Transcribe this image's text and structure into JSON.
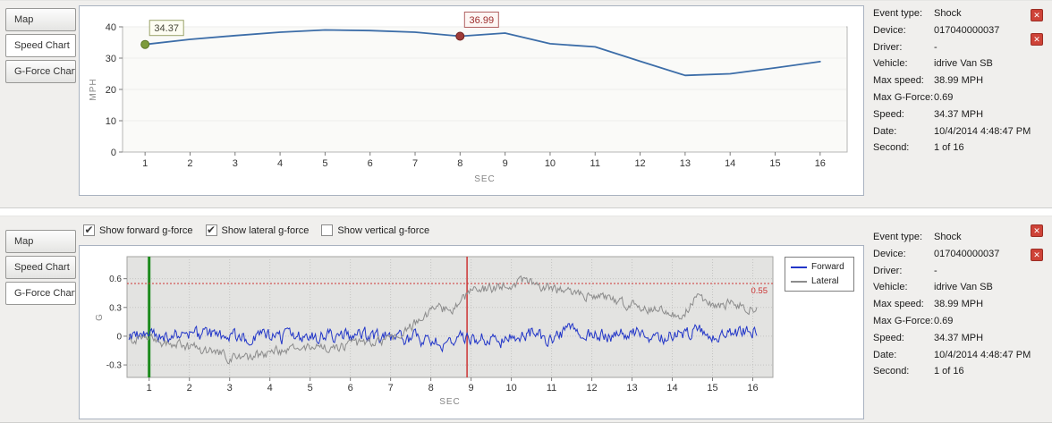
{
  "icons": {
    "close": "✕",
    "check": "✔"
  },
  "tabs": {
    "map": "Map",
    "speed": "Speed Chart",
    "gforce": "G-Force Chart"
  },
  "event_info": {
    "rows": [
      {
        "label": "Event type:",
        "value": "Shock"
      },
      {
        "label": "Device:",
        "value": "017040000037"
      },
      {
        "label": "Driver:",
        "value": "-"
      },
      {
        "label": "Vehicle:",
        "value": "idrive Van SB"
      },
      {
        "label": "Max speed:",
        "value": "38.99 MPH"
      },
      {
        "label": "Max G-Force:",
        "value": "0.69"
      },
      {
        "label": "Speed:",
        "value": "34.37 MPH"
      },
      {
        "label": "Date:",
        "value": "10/4/2014 4:48:47 PM"
      },
      {
        "label": "Second:",
        "value": "1 of 16"
      }
    ]
  },
  "gforce_controls": {
    "checkboxes": [
      {
        "name": "show-forward-gforce-checkbox",
        "label": "Show forward g-force",
        "checked": true
      },
      {
        "name": "show-lateral-gforce-checkbox",
        "label": "Show lateral g-force",
        "checked": true
      },
      {
        "name": "show-vertical-gforce-checkbox",
        "label": "Show vertical g-force",
        "checked": false
      }
    ]
  },
  "legend": {
    "position": "right",
    "entries": [
      {
        "name": "Forward",
        "color": "#2236c8"
      },
      {
        "name": "Lateral",
        "color": "#8c8c8c"
      }
    ]
  },
  "chart_data": [
    {
      "type": "line",
      "title": "",
      "xlabel": "SEC",
      "ylabel": "MPH",
      "xlim": [
        0.5,
        16.6
      ],
      "ylim": [
        0,
        40
      ],
      "xticks": [
        1,
        2,
        3,
        4,
        5,
        6,
        7,
        8,
        9,
        10,
        11,
        12,
        13,
        14,
        15,
        16
      ],
      "yticks": [
        0,
        10,
        20,
        30,
        40
      ],
      "grid": false,
      "legend": "none",
      "line_color": "#3c6da8",
      "x": [
        1,
        2,
        3,
        4,
        5,
        6,
        7,
        8,
        9,
        10,
        11,
        12,
        13,
        14,
        15,
        16
      ],
      "values": [
        34.37,
        36.0,
        37.2,
        38.3,
        38.99,
        38.8,
        38.3,
        36.99,
        38.0,
        34.6,
        33.6,
        29.0,
        24.5,
        25.0,
        26.9,
        28.9
      ],
      "markers": [
        {
          "x": 1,
          "y": 34.37,
          "label": "34.37",
          "dot_color": "#7d9b3c",
          "dot_stroke": "#5c7627",
          "text_color": "#47473a",
          "box_border": "#9aa36a",
          "box_fill": "#fdfdf2"
        },
        {
          "x": 8,
          "y": 36.99,
          "label": "36.99",
          "dot_color": "#9e3a38",
          "dot_stroke": "#702422",
          "text_color": "#9c2b2b",
          "box_border": "#b06060",
          "box_fill": "#fdf6f4"
        }
      ]
    },
    {
      "type": "line",
      "title": "",
      "xlabel": "SEC",
      "ylabel": "G",
      "xlim": [
        0.45,
        16.5
      ],
      "ylim": [
        -0.43,
        0.83
      ],
      "xticks": [
        1,
        2,
        3,
        4,
        5,
        6,
        7,
        8,
        9,
        10,
        11,
        12,
        13,
        14,
        15,
        16
      ],
      "yticks": [
        -0.3,
        0,
        0.3,
        0.6
      ],
      "grid": true,
      "legend": "right",
      "plot_background": "#e3e3e1",
      "threshold": {
        "y": 0.55,
        "label": "0.55",
        "color": "#cc3333"
      },
      "vlines": [
        {
          "name": "event-start-line",
          "x": 1.0,
          "color": "#1c8a1c",
          "width": 3
        },
        {
          "name": "shock-moment-line",
          "x": 8.9,
          "color": "#cc3333",
          "width": 1.5
        }
      ],
      "series": [
        {
          "name": "Forward",
          "color": "#2236c8",
          "noise": 0.065,
          "seed": 9,
          "keyframes": [
            [
              0.5,
              0
            ],
            [
              2,
              0.01
            ],
            [
              4,
              -0.01
            ],
            [
              6,
              0.01
            ],
            [
              7.5,
              -0.02
            ],
            [
              8.3,
              -0.07
            ],
            [
              9,
              -0.02
            ],
            [
              9.8,
              -0.05
            ],
            [
              10.5,
              0.03
            ],
            [
              11,
              -0.04
            ],
            [
              11.5,
              0.05
            ],
            [
              12,
              0
            ],
            [
              13,
              0.04
            ],
            [
              13.6,
              -0.05
            ],
            [
              14.2,
              0.05
            ],
            [
              15,
              0.01
            ],
            [
              16.1,
              0.05
            ]
          ]
        },
        {
          "name": "Lateral",
          "color": "#8c8c8c",
          "noise": 0.045,
          "seed": 4,
          "keyframes": [
            [
              0.5,
              -0.02
            ],
            [
              1.5,
              -0.07
            ],
            [
              2.2,
              -0.13
            ],
            [
              3,
              -0.22
            ],
            [
              3.4,
              -0.24
            ],
            [
              4,
              -0.17
            ],
            [
              5,
              -0.12
            ],
            [
              6,
              -0.1
            ],
            [
              6.8,
              -0.06
            ],
            [
              7.3,
              0.02
            ],
            [
              7.8,
              0.2
            ],
            [
              8.2,
              0.28
            ],
            [
              8.6,
              0.3
            ],
            [
              9,
              0.46
            ],
            [
              9.5,
              0.5
            ],
            [
              10,
              0.55
            ],
            [
              10.3,
              0.58
            ],
            [
              10.8,
              0.52
            ],
            [
              11.2,
              0.47
            ],
            [
              11.8,
              0.42
            ],
            [
              12.3,
              0.42
            ],
            [
              12.8,
              0.34
            ],
            [
              13.3,
              0.31
            ],
            [
              13.8,
              0.26
            ],
            [
              14.2,
              0.2
            ],
            [
              14.6,
              0.4
            ],
            [
              15,
              0.32
            ],
            [
              15.5,
              0.34
            ],
            [
              16.1,
              0.28
            ]
          ]
        }
      ]
    }
  ]
}
